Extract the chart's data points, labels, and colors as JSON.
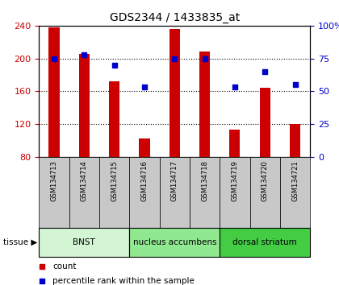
{
  "title": "GDS2344 / 1433835_at",
  "samples": [
    "GSM134713",
    "GSM134714",
    "GSM134715",
    "GSM134716",
    "GSM134717",
    "GSM134718",
    "GSM134719",
    "GSM134720",
    "GSM134721"
  ],
  "counts": [
    238,
    205,
    172,
    102,
    236,
    208,
    113,
    164,
    120
  ],
  "percentiles": [
    75,
    78,
    70,
    53,
    75,
    75,
    53,
    65,
    55
  ],
  "ylim_left": [
    80,
    240
  ],
  "ylim_right": [
    0,
    100
  ],
  "yticks_left": [
    80,
    120,
    160,
    200,
    240
  ],
  "yticks_right": [
    0,
    25,
    50,
    75,
    100
  ],
  "ytick_labels_right": [
    "0",
    "25",
    "50",
    "75",
    "100%"
  ],
  "bar_color": "#cc0000",
  "dot_color": "#0000cc",
  "bar_width": 0.35,
  "tissue_groups": [
    {
      "label": "BNST",
      "samples": [
        0,
        1,
        2
      ],
      "color": "#d4f5d4"
    },
    {
      "label": "nucleus accumbens",
      "samples": [
        3,
        4,
        5
      ],
      "color": "#90e890"
    },
    {
      "label": "dorsal striatum",
      "samples": [
        6,
        7,
        8
      ],
      "color": "#44cc44"
    }
  ],
  "tissue_label": "tissue",
  "legend_count_label": "count",
  "legend_percentile_label": "percentile rank within the sample",
  "tick_label_bg": "#c8c8c8",
  "grid_linestyle": ":",
  "grid_linewidth": 0.8
}
